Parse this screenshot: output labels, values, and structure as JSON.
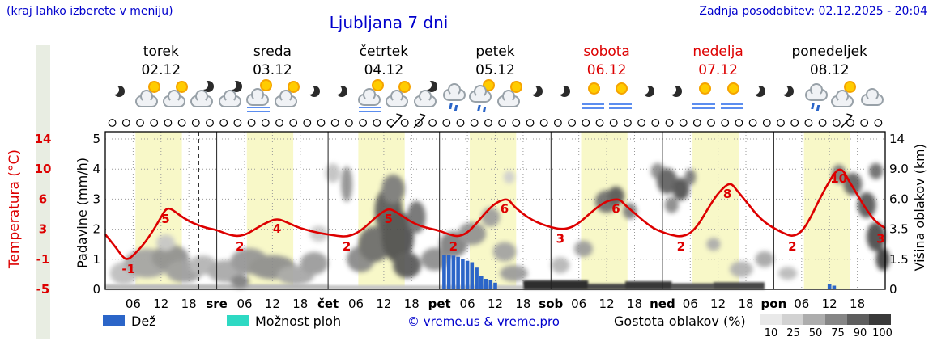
{
  "header": {
    "menu_hint": "(kraj lahko izberete v meniju)",
    "title": "Ljubljana 7 dni",
    "last_update": "Zadnja posodobitev: 02.12.2025 - 20:04"
  },
  "legend": {
    "rain": "Dež",
    "showers": "Možnost ploh",
    "copyright": "© vreme.us & vreme.pro",
    "cloud_density": "Gostota oblakov (%)",
    "scale_labels": [
      "10",
      "25",
      "50",
      "75",
      "90",
      "100"
    ],
    "scale_colors": [
      "#e9e9e9",
      "#d2d2d2",
      "#adadad",
      "#868686",
      "#5e5e5e",
      "#3a3a3a"
    ]
  },
  "colors": {
    "accent": "#0000cc",
    "red": "#dd0000",
    "rain": "#2b65c8",
    "shower": "#2ed9c3",
    "day_band": "#f8f8c8"
  },
  "chart_data": {
    "type": "line",
    "title": "Ljubljana 7 dni",
    "hours_total": 168,
    "now_line_t": 20.07,
    "daylight": [
      6.5,
      16.5
    ],
    "days": [
      {
        "name": "torek",
        "date": "02.12",
        "color": "#000000"
      },
      {
        "name": "sreda",
        "date": "03.12",
        "color": "#000000"
      },
      {
        "name": "četrtek",
        "date": "04.12",
        "color": "#000000"
      },
      {
        "name": "petek",
        "date": "05.12",
        "color": "#000000"
      },
      {
        "name": "sobota",
        "date": "06.12",
        "color": "#dd0000"
      },
      {
        "name": "nedelja",
        "date": "07.12",
        "color": "#dd0000"
      },
      {
        "name": "ponedeljek",
        "date": "08.12",
        "color": "#000000"
      }
    ],
    "time_ticks": {
      "hours": [
        6,
        12,
        18
      ],
      "day_abbrevs": [
        "sre",
        "čet",
        "pet",
        "sob",
        "ned",
        "pon"
      ]
    },
    "temp_axis": {
      "label": "Temperatura (°C)",
      "ticks": [
        14,
        10,
        6,
        3,
        -1,
        -5
      ]
    },
    "precip_axis": {
      "label": "Padavine (mm/h)",
      "ticks": [
        5,
        4,
        3,
        2,
        1,
        0
      ]
    },
    "cloud_axis": {
      "label": "Višina oblakov (km)",
      "ticks": [
        "14",
        "9.0",
        "6.0",
        "3.5",
        "1.5",
        "0"
      ]
    },
    "temperature": [
      [
        0,
        2.3
      ],
      [
        2,
        0.8
      ],
      [
        4,
        -0.9
      ],
      [
        5,
        -1
      ],
      [
        6,
        -0.5
      ],
      [
        8,
        0.8
      ],
      [
        10,
        2.5
      ],
      [
        12,
        4.2
      ],
      [
        13,
        5
      ],
      [
        14,
        5.1
      ],
      [
        16,
        4.4
      ],
      [
        18,
        3.8
      ],
      [
        20,
        3.4
      ],
      [
        22,
        3.1
      ],
      [
        24,
        2.9
      ],
      [
        26,
        2.4
      ],
      [
        28,
        2.05
      ],
      [
        30,
        2.2
      ],
      [
        32,
        2.9
      ],
      [
        34,
        3.5
      ],
      [
        36,
        3.9
      ],
      [
        37,
        4
      ],
      [
        38,
        3.9
      ],
      [
        40,
        3.5
      ],
      [
        42,
        3.1
      ],
      [
        44,
        2.8
      ],
      [
        46,
        2.5
      ],
      [
        48,
        2.3
      ],
      [
        50,
        2.1
      ],
      [
        52,
        2
      ],
      [
        54,
        2.4
      ],
      [
        56,
        3.2
      ],
      [
        58,
        4.1
      ],
      [
        60,
        4.8
      ],
      [
        61,
        5
      ],
      [
        62,
        4.9
      ],
      [
        64,
        4.3
      ],
      [
        66,
        3.7
      ],
      [
        68,
        3.3
      ],
      [
        70,
        3.05
      ],
      [
        72,
        2.8
      ],
      [
        74,
        2.3
      ],
      [
        76,
        2
      ],
      [
        78,
        2.5
      ],
      [
        80,
        3.6
      ],
      [
        82,
        4.7
      ],
      [
        84,
        5.6
      ],
      [
        86,
        6
      ],
      [
        87,
        5.9
      ],
      [
        88,
        5.3
      ],
      [
        90,
        4.5
      ],
      [
        92,
        3.9
      ],
      [
        94,
        3.5
      ],
      [
        96,
        3.2
      ],
      [
        98,
        3
      ],
      [
        100,
        3.1
      ],
      [
        102,
        3.6
      ],
      [
        104,
        4.4
      ],
      [
        106,
        5.2
      ],
      [
        108,
        5.8
      ],
      [
        110,
        6
      ],
      [
        111,
        5.9
      ],
      [
        112,
        5.4
      ],
      [
        114,
        4.6
      ],
      [
        116,
        3.8
      ],
      [
        118,
        3.1
      ],
      [
        120,
        2.6
      ],
      [
        122,
        2.2
      ],
      [
        124,
        2
      ],
      [
        126,
        2.4
      ],
      [
        128,
        3.6
      ],
      [
        130,
        5.2
      ],
      [
        132,
        6.8
      ],
      [
        134,
        8
      ],
      [
        135,
        8
      ],
      [
        136,
        7.2
      ],
      [
        138,
        5.8
      ],
      [
        140,
        4.6
      ],
      [
        142,
        3.7
      ],
      [
        144,
        3.1
      ],
      [
        146,
        2.5
      ],
      [
        148,
        2
      ],
      [
        150,
        2.6
      ],
      [
        152,
        4.2
      ],
      [
        154,
        6.2
      ],
      [
        156,
        8.4
      ],
      [
        157,
        9.4
      ],
      [
        158,
        10
      ],
      [
        159,
        9.8
      ],
      [
        160,
        8.6
      ],
      [
        162,
        6.6
      ],
      [
        164,
        4.9
      ],
      [
        166,
        3.7
      ],
      [
        168,
        3.1
      ]
    ],
    "temp_labels": [
      [
        5,
        -1
      ],
      [
        13,
        5
      ],
      [
        29,
        2
      ],
      [
        37,
        4
      ],
      [
        52,
        2
      ],
      [
        61,
        5
      ],
      [
        75,
        2
      ],
      [
        86,
        6
      ],
      [
        98,
        3
      ],
      [
        110,
        6
      ],
      [
        124,
        2
      ],
      [
        134,
        8
      ],
      [
        148,
        2
      ],
      [
        158,
        10
      ],
      [
        167,
        3
      ]
    ],
    "rain_bars": [
      [
        73,
        1.15
      ],
      [
        74,
        1.15
      ],
      [
        75,
        1.12
      ],
      [
        76,
        1.08
      ],
      [
        77,
        1.02
      ],
      [
        78,
        0.95
      ],
      [
        79,
        0.9
      ],
      [
        80,
        0.72
      ],
      [
        81,
        0.45
      ],
      [
        82,
        0.35
      ],
      [
        83,
        0.3
      ],
      [
        84,
        0.22
      ],
      [
        156,
        0.18
      ],
      [
        157,
        0.12
      ]
    ],
    "cloud_bands": [
      [
        0,
        48,
        0.25,
        "#bcbcbc"
      ],
      [
        48,
        90,
        0.2,
        "#c6c6c6"
      ],
      [
        90,
        104,
        0.45,
        "#2e2e2e"
      ],
      [
        104,
        112,
        0.28,
        "#4a4a4a"
      ],
      [
        112,
        122,
        0.4,
        "#383838"
      ],
      [
        122,
        131,
        0.3,
        "#565656"
      ],
      [
        131,
        142,
        0.35,
        "#474747"
      ]
    ],
    "cloud_blobs": [
      [
        4,
        0.8,
        3,
        14,
        "#bdbdbd"
      ],
      [
        9,
        1.3,
        5,
        18,
        "#a3a3a3"
      ],
      [
        14,
        1.6,
        4,
        16,
        "#8f8f8f"
      ],
      [
        17,
        0.9,
        4,
        14,
        "#9c9c9c"
      ],
      [
        21,
        1.2,
        3,
        12,
        "#b3b3b3"
      ],
      [
        13,
        2.6,
        2,
        10,
        "#c6c6c6"
      ],
      [
        26,
        0.9,
        4,
        14,
        "#a8a8a8"
      ],
      [
        29,
        0.4,
        2,
        8,
        "#7d7d7d"
      ],
      [
        31,
        1.4,
        4,
        16,
        "#949494"
      ],
      [
        36,
        1.1,
        5,
        15,
        "#8d8d8d"
      ],
      [
        41,
        0.7,
        4,
        12,
        "#a6a6a6"
      ],
      [
        45,
        1.3,
        3,
        14,
        "#9a9a9a"
      ],
      [
        46,
        3.2,
        2,
        10,
        "#c9c9c9"
      ],
      [
        49,
        8.6,
        1.6,
        12,
        "#c2c2c2"
      ],
      [
        52,
        7.5,
        1.2,
        22,
        "#8f8f8f"
      ],
      [
        55,
        1.5,
        3,
        16,
        "#878787"
      ],
      [
        58,
        2.5,
        3.5,
        22,
        "#6a6a6a"
      ],
      [
        61,
        5,
        3,
        30,
        "#5a5a5a"
      ],
      [
        62,
        7,
        2.5,
        18,
        "#7a7a7a"
      ],
      [
        63,
        3,
        3.5,
        32,
        "#4d4d4d"
      ],
      [
        65,
        1.2,
        3,
        16,
        "#575757"
      ],
      [
        67,
        4.5,
        2,
        20,
        "#707070"
      ],
      [
        71,
        1.5,
        3,
        14,
        "#8b8b8b"
      ],
      [
        75,
        2.5,
        3,
        16,
        "#7e7e7e"
      ],
      [
        79,
        3.2,
        3,
        14,
        "#909090"
      ],
      [
        83,
        4.5,
        2,
        12,
        "#9d9d9d"
      ],
      [
        86,
        2,
        2.5,
        12,
        "#a2a2a2"
      ],
      [
        87,
        8.2,
        1.2,
        8,
        "#cfcfcf"
      ],
      [
        88,
        0.8,
        3,
        10,
        "#9a9a9a"
      ],
      [
        98,
        1.2,
        2,
        10,
        "#b6b6b6"
      ],
      [
        103,
        2.2,
        2,
        10,
        "#9b9b9b"
      ],
      [
        108,
        5.8,
        2.5,
        14,
        "#6e6e6e"
      ],
      [
        110,
        6.3,
        1.8,
        12,
        "#565656"
      ],
      [
        113,
        5,
        1.5,
        10,
        "#7b7b7b"
      ],
      [
        119,
        8.8,
        1.5,
        10,
        "#8b8b8b"
      ],
      [
        121,
        7.8,
        2.2,
        16,
        "#5e5e5e"
      ],
      [
        124,
        7,
        1.8,
        14,
        "#4f4f4f"
      ],
      [
        126,
        8.2,
        1.2,
        10,
        "#787878"
      ],
      [
        122,
        5.5,
        1.5,
        10,
        "#888888"
      ],
      [
        131,
        2.5,
        1.5,
        8,
        "#ababab"
      ],
      [
        137,
        1,
        2.5,
        10,
        "#b1b1b1"
      ],
      [
        142,
        1.5,
        2,
        10,
        "#a6a6a6"
      ],
      [
        147,
        0.8,
        2,
        8,
        "#b9b9b9"
      ],
      [
        158,
        8.5,
        1.5,
        12,
        "#787878"
      ],
      [
        161,
        7.5,
        2,
        14,
        "#616161"
      ],
      [
        164,
        5.5,
        2,
        16,
        "#565656"
      ],
      [
        166,
        3,
        2,
        18,
        "#4a4a4a"
      ],
      [
        167.5,
        1.5,
        1.5,
        14,
        "#404040"
      ],
      [
        166,
        8.8,
        1.5,
        10,
        "#6b6b6b"
      ]
    ],
    "symbols": {
      "circle_interval_h": 3,
      "wind_barbs_t": [
        62,
        67,
        159
      ]
    },
    "icons": [
      "moon",
      "sun-cloud",
      "sun-cloud",
      "cloud-moon",
      "cloud-moon",
      "fog-sun-cloud",
      "sun-cloud",
      "moon",
      "moon",
      "fog-sun-cloud",
      "sun-cloud",
      "cloud-moon",
      "drizzle-cloud",
      "drizzle-sun-cloud",
      "sun-cloud",
      "moon",
      "moon",
      "fog-sun",
      "fog-sun",
      "moon",
      "moon",
      "fog-sun",
      "fog-sun",
      "moon",
      "moon",
      "drizzle-cloud",
      "sun-cloud",
      "cloud"
    ]
  }
}
